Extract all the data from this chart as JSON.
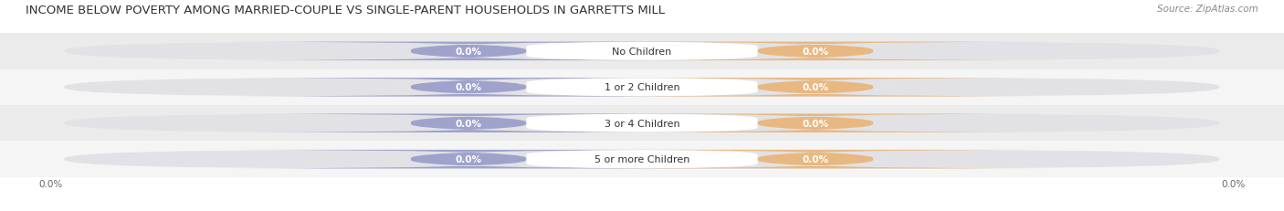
{
  "title": "INCOME BELOW POVERTY AMONG MARRIED-COUPLE VS SINGLE-PARENT HOUSEHOLDS IN GARRETTS MILL",
  "source": "Source: ZipAtlas.com",
  "categories": [
    "No Children",
    "1 or 2 Children",
    "3 or 4 Children",
    "5 or more Children"
  ],
  "married_values": [
    "0.0%",
    "0.0%",
    "0.0%",
    "0.0%"
  ],
  "single_values": [
    "0.0%",
    "0.0%",
    "0.0%",
    "0.0%"
  ],
  "married_color": "#9fa3cc",
  "single_color": "#e8b882",
  "bar_bg_color": "#e2e2e6",
  "row_bg_even": "#ebebeb",
  "row_bg_odd": "#f5f5f5",
  "title_fontsize": 9.5,
  "source_fontsize": 7.5,
  "value_fontsize": 7.5,
  "category_fontsize": 8,
  "legend_fontsize": 8,
  "background_color": "#ffffff",
  "x_tick_label": "0.0%"
}
